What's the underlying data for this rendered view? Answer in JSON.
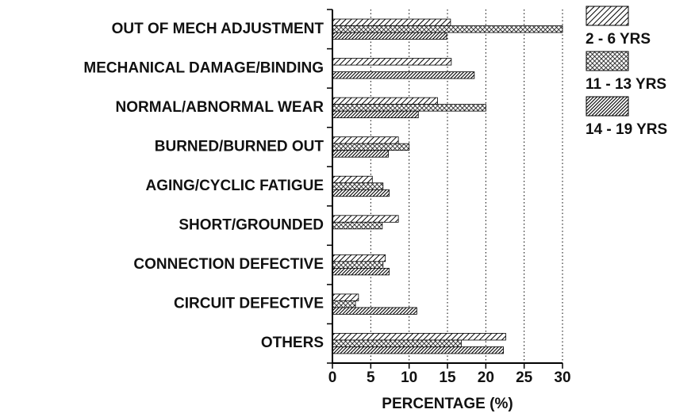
{
  "chart_data": {
    "type": "barh",
    "categories": [
      "OUT OF MECH ADJUSTMENT",
      "MECHANICAL DAMAGE/BINDING",
      "NORMAL/ABNORMAL WEAR",
      "BURNED/BURNED OUT",
      "AGING/CYCLIC FATIGUE",
      "SHORT/GROUNDED",
      "CONNECTION DEFECTIVE",
      "CIRCUIT DEFECTIVE",
      "OTHERS"
    ],
    "series": [
      {
        "name": "2 - 6 YRS",
        "color": "#000000",
        "hatch": "diagonal",
        "values": [
          15.4,
          15.5,
          13.7,
          8.6,
          5.2,
          8.6,
          6.9,
          3.4,
          22.6
        ]
      },
      {
        "name": "11 - 13 YRS",
        "color": "#000000",
        "hatch": "cross",
        "values": [
          30,
          0,
          20,
          10,
          6.6,
          6.5,
          6.6,
          3.0,
          16.8
        ]
      },
      {
        "name": "14 - 19 YRS",
        "color": "#000000",
        "hatch": "dense",
        "values": [
          14.9,
          18.5,
          11.2,
          7.3,
          7.4,
          0,
          7.4,
          11,
          22.3
        ]
      }
    ],
    "xlabel": "PERCENTAGE (%)",
    "xlim": [
      0,
      30
    ],
    "xticks": [
      0,
      5,
      10,
      15,
      20,
      25,
      30
    ],
    "grid": true,
    "legend": "right"
  }
}
